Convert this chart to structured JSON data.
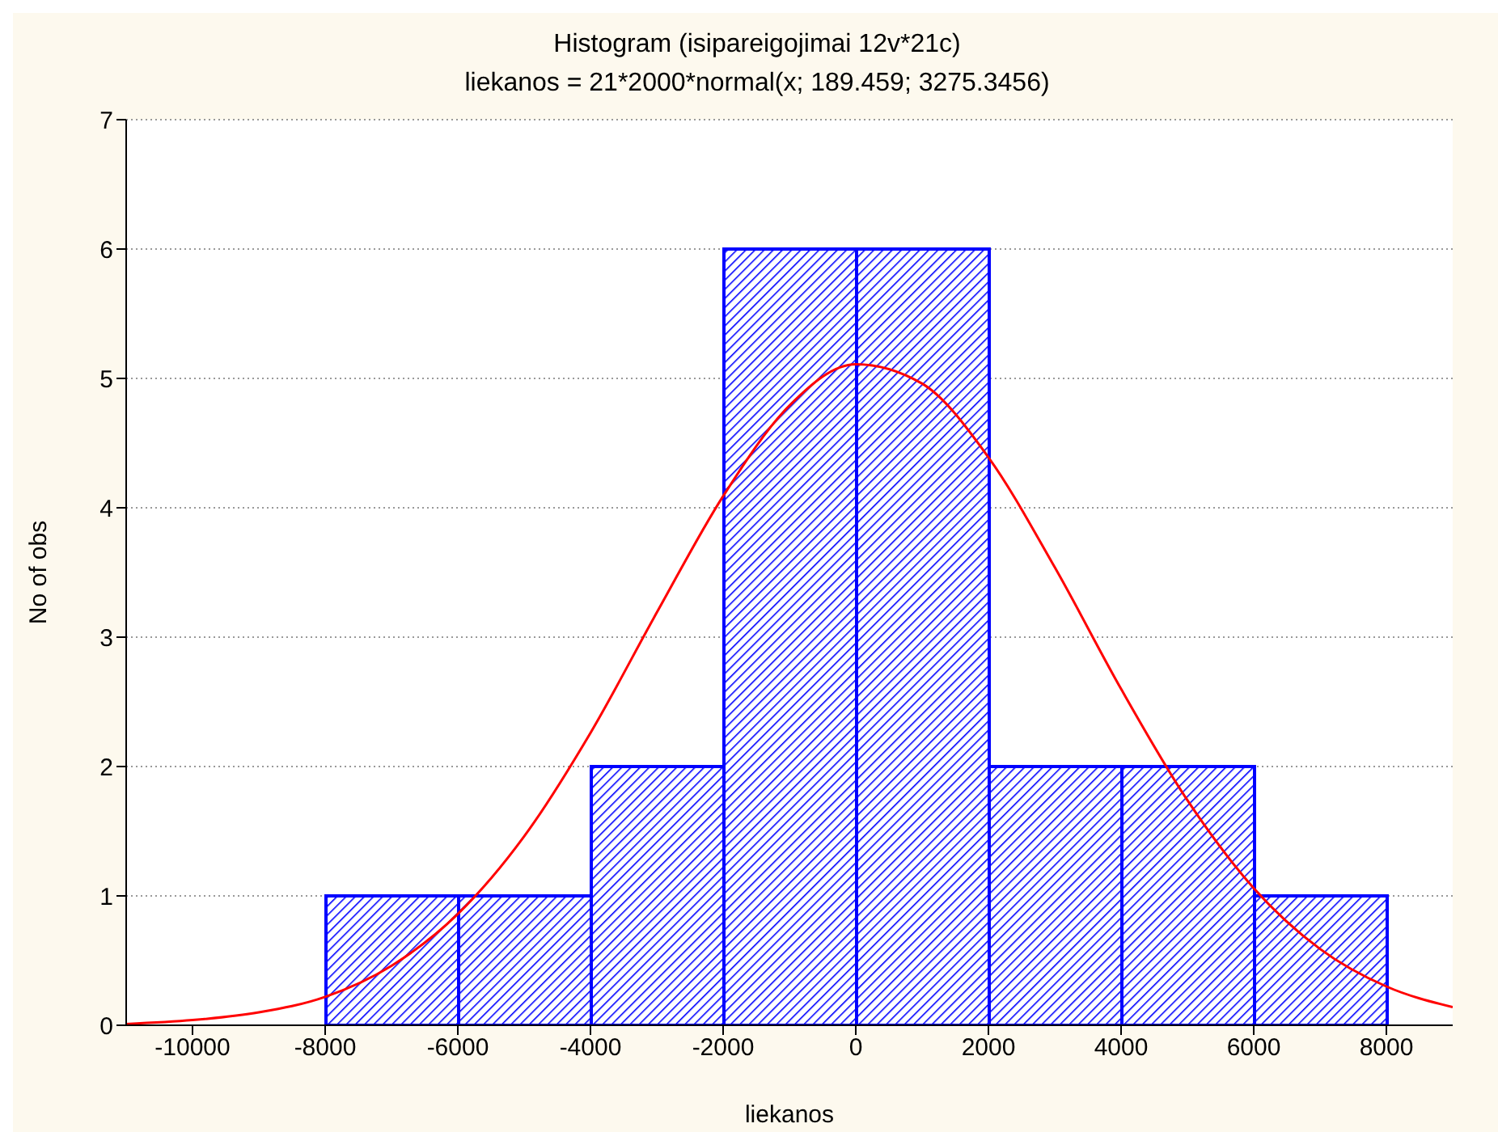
{
  "chart_data": {
    "type": "histogram",
    "title": "Histogram (isipareigojimai 12v*21c)",
    "subtitle": "liekanos = 21*2000*normal(x; 189.459; 3275.3456)",
    "xlabel": "liekanos",
    "ylabel": "No of obs",
    "bins": [
      -8000,
      -6000,
      -4000,
      -2000,
      0,
      2000,
      4000,
      6000,
      8000
    ],
    "values": [
      1,
      1,
      2,
      6,
      6,
      2,
      2,
      1
    ],
    "color": "#0000ff",
    "series": [
      {
        "type": "line",
        "color": "#ff0000",
        "x": [
          -11000,
          -10000,
          -9000,
          -8000,
          -7000,
          -6000,
          -5000,
          -4000,
          -3000,
          -2000,
          -1000,
          0,
          1000,
          2000,
          3000,
          4000,
          5000,
          6000,
          7000,
          8000,
          9000
        ],
        "values": [
          0.01,
          0.04,
          0.1,
          0.22,
          0.46,
          0.86,
          1.46,
          2.26,
          3.19,
          4.09,
          4.79,
          5.11,
          4.96,
          4.39,
          3.54,
          2.6,
          1.74,
          1.06,
          0.59,
          0.3,
          0.14
        ]
      }
    ],
    "xlim": [
      -11000,
      9000
    ],
    "xticks": [
      -10000,
      -8000,
      -6000,
      -4000,
      -2000,
      0,
      2000,
      4000,
      6000,
      8000
    ],
    "ylim": [
      0,
      7
    ],
    "yticks": [
      0,
      1,
      2,
      3,
      4,
      5,
      6,
      7
    ],
    "grid": "y",
    "legend": false,
    "marker": "none",
    "line_style": "solid"
  }
}
